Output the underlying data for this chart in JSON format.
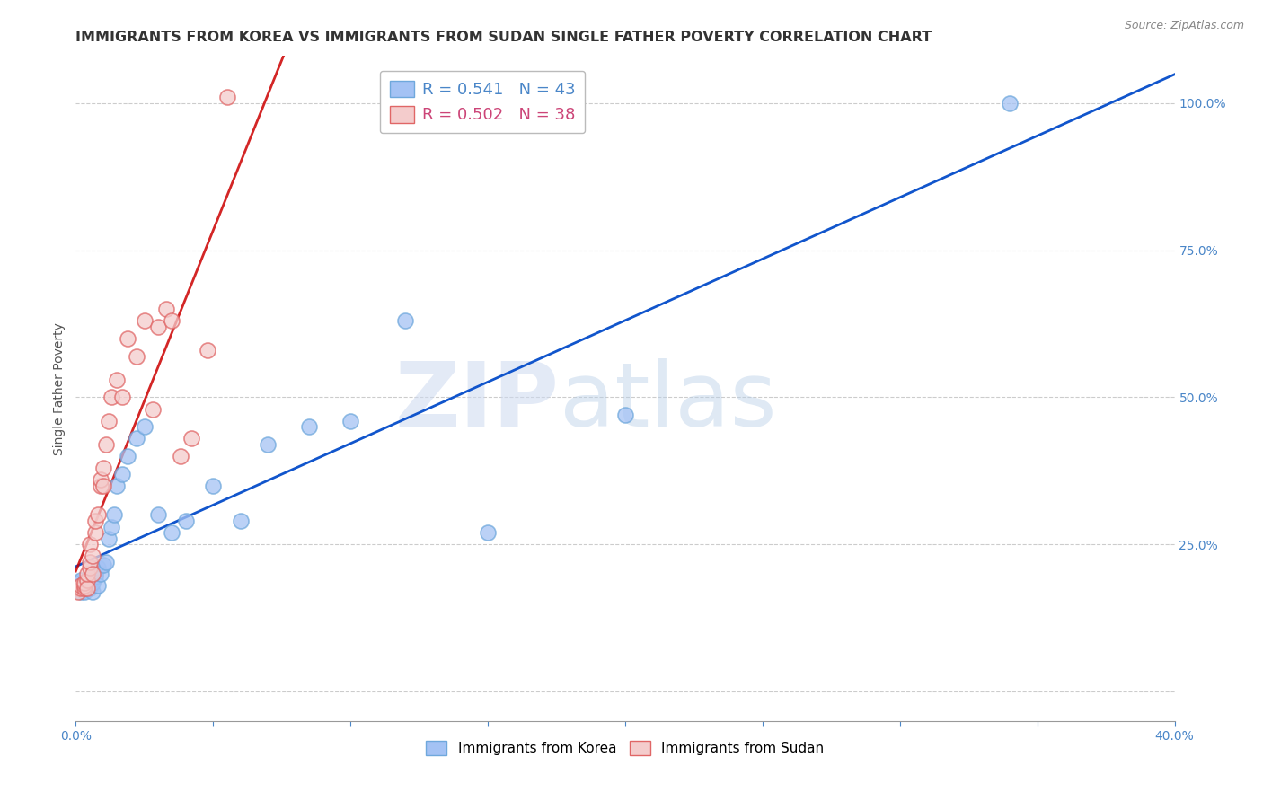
{
  "title": "IMMIGRANTS FROM KOREA VS IMMIGRANTS FROM SUDAN SINGLE FATHER POVERTY CORRELATION CHART",
  "source": "Source: ZipAtlas.com",
  "ylabel": "Single Father Poverty",
  "xlim": [
    0.0,
    0.4
  ],
  "ylim": [
    -0.05,
    1.08
  ],
  "right_yticks": [
    0.0,
    0.25,
    0.5,
    0.75,
    1.0
  ],
  "right_ytick_labels": [
    "",
    "25.0%",
    "50.0%",
    "75.0%",
    "100.0%"
  ],
  "korea_color": "#a4c2f4",
  "korea_edge_color": "#6fa8dc",
  "sudan_color": "#f4cccc",
  "sudan_edge_color": "#e06666",
  "trend_korea_color": "#1155cc",
  "trend_sudan_color": "#cc0000",
  "legend_r_korea": "R = 0.541",
  "legend_n_korea": "N = 43",
  "legend_r_sudan": "R = 0.502",
  "legend_n_sudan": "N = 38",
  "legend_korea_label": "Immigrants from Korea",
  "legend_sudan_label": "Immigrants from Sudan",
  "watermark_zip": "ZIP",
  "watermark_atlas": "atlas",
  "korea_x": [
    0.001,
    0.001,
    0.002,
    0.002,
    0.002,
    0.003,
    0.003,
    0.003,
    0.004,
    0.004,
    0.004,
    0.005,
    0.005,
    0.005,
    0.006,
    0.006,
    0.007,
    0.007,
    0.008,
    0.008,
    0.009,
    0.01,
    0.011,
    0.012,
    0.013,
    0.014,
    0.015,
    0.017,
    0.019,
    0.022,
    0.025,
    0.03,
    0.035,
    0.04,
    0.05,
    0.06,
    0.07,
    0.085,
    0.1,
    0.12,
    0.15,
    0.2,
    0.34
  ],
  "korea_y": [
    0.175,
    0.185,
    0.17,
    0.18,
    0.19,
    0.17,
    0.18,
    0.185,
    0.175,
    0.18,
    0.19,
    0.175,
    0.18,
    0.19,
    0.17,
    0.185,
    0.2,
    0.195,
    0.18,
    0.21,
    0.2,
    0.215,
    0.22,
    0.26,
    0.28,
    0.3,
    0.35,
    0.37,
    0.4,
    0.43,
    0.45,
    0.3,
    0.27,
    0.29,
    0.35,
    0.29,
    0.42,
    0.45,
    0.46,
    0.63,
    0.27,
    0.47,
    1.0
  ],
  "sudan_x": [
    0.001,
    0.001,
    0.002,
    0.002,
    0.003,
    0.003,
    0.003,
    0.004,
    0.004,
    0.004,
    0.005,
    0.005,
    0.005,
    0.006,
    0.006,
    0.007,
    0.007,
    0.008,
    0.009,
    0.009,
    0.01,
    0.01,
    0.011,
    0.012,
    0.013,
    0.015,
    0.017,
    0.019,
    0.022,
    0.025,
    0.028,
    0.03,
    0.033,
    0.035,
    0.038,
    0.042,
    0.048,
    0.055
  ],
  "sudan_y": [
    0.175,
    0.17,
    0.175,
    0.18,
    0.175,
    0.18,
    0.185,
    0.19,
    0.175,
    0.2,
    0.21,
    0.22,
    0.25,
    0.2,
    0.23,
    0.27,
    0.29,
    0.3,
    0.35,
    0.36,
    0.35,
    0.38,
    0.42,
    0.46,
    0.5,
    0.53,
    0.5,
    0.6,
    0.57,
    0.63,
    0.48,
    0.62,
    0.65,
    0.63,
    0.4,
    0.43,
    0.58,
    1.01
  ],
  "sudan_trend_x": [
    0.0,
    0.085
  ],
  "grid_color": "#cccccc",
  "background_color": "#ffffff",
  "title_fontsize": 11.5,
  "axis_label_fontsize": 10,
  "tick_fontsize": 10,
  "legend_fontsize": 12
}
